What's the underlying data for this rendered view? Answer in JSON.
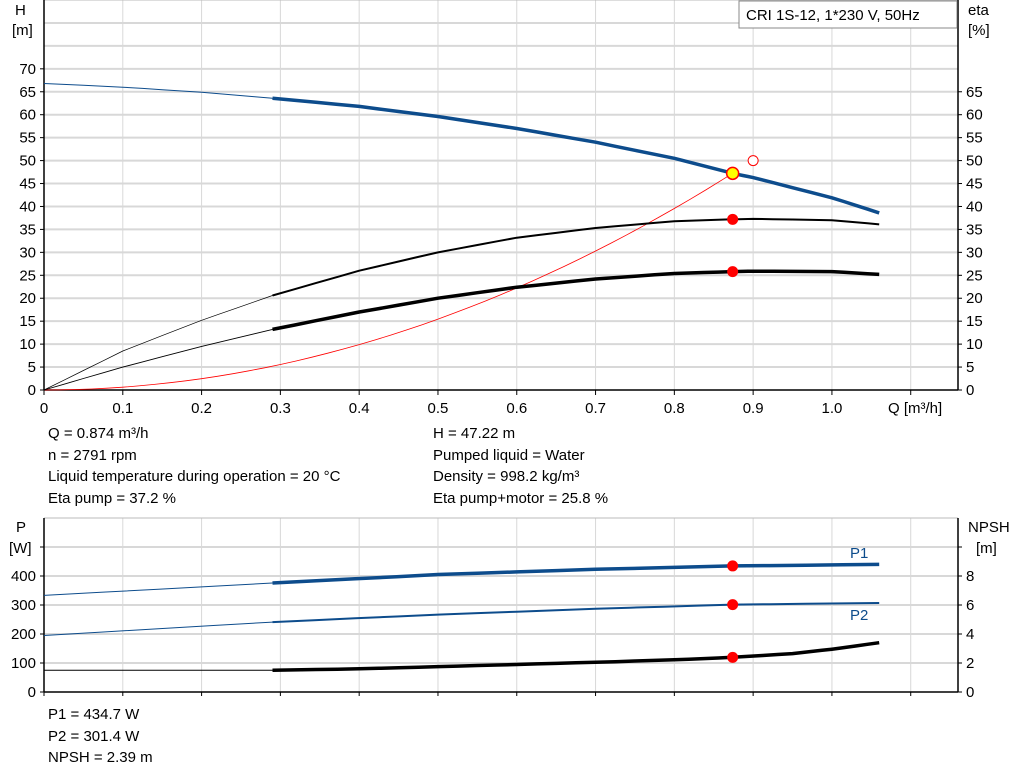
{
  "colors": {
    "h_curve": "#0d4c8c",
    "eta": "#000000",
    "system": "#ff0000",
    "duty_point": "#ff0000",
    "duty_fill": "#ffff00",
    "grid": "#d8d8d8",
    "p_curve": "#0d4c8c"
  },
  "chart_data": [
    {
      "type": "line",
      "legend_box": "CRI 1S-12, 1*230 V, 50Hz",
      "legend_placement": "top-right",
      "xlabel": "Q [m³/h]",
      "ylabel_left": {
        "name": "H",
        "unit": "[m]"
      },
      "ylabel_right": {
        "name": "eta",
        "unit": "[%]"
      },
      "xlim": [
        0,
        1.16
      ],
      "ylim": [
        0,
        85
      ],
      "x_ticks": [
        "0",
        "0.1",
        "0.2",
        "0.3",
        "0.4",
        "0.5",
        "0.6",
        "0.7",
        "0.8",
        "0.9",
        "1.0"
      ],
      "y_ticks_left": [
        0,
        5,
        10,
        15,
        20,
        25,
        30,
        35,
        40,
        45,
        50,
        55,
        60,
        65,
        70
      ],
      "y_ticks_right": [
        0,
        5,
        10,
        15,
        20,
        25,
        30,
        35,
        40,
        45,
        50,
        55,
        60,
        65
      ],
      "grid": true,
      "series": [
        {
          "id": "H",
          "x": [
            0,
            0.1,
            0.2,
            0.29,
            0.4,
            0.5,
            0.6,
            0.7,
            0.8,
            0.874,
            0.9,
            1.0,
            1.06
          ],
          "y": [
            66.8,
            66,
            64.9,
            63.6,
            61.8,
            59.6,
            57,
            54,
            50.5,
            47.22,
            46.3,
            41.9,
            38.6
          ]
        },
        {
          "id": "eta_pump",
          "x": [
            0,
            0.1,
            0.2,
            0.29,
            0.4,
            0.5,
            0.6,
            0.7,
            0.8,
            0.874,
            0.9,
            1.0,
            1.06
          ],
          "y": [
            0,
            8.5,
            15.2,
            20.6,
            26,
            30,
            33.2,
            35.3,
            36.8,
            37.2,
            37.3,
            37,
            36.1
          ]
        },
        {
          "id": "eta_pump_motor",
          "x": [
            0,
            0.1,
            0.2,
            0.29,
            0.4,
            0.5,
            0.6,
            0.7,
            0.8,
            0.874,
            0.9,
            1.0,
            1.06
          ],
          "y": [
            0,
            5,
            9.5,
            13.2,
            17,
            20,
            22.4,
            24.2,
            25.4,
            25.8,
            25.9,
            25.8,
            25.2
          ]
        },
        {
          "id": "system",
          "x": [
            0,
            0.1,
            0.2,
            0.3,
            0.4,
            0.5,
            0.6,
            0.7,
            0.8,
            0.874
          ],
          "y": [
            0,
            0.62,
            2.47,
            5.56,
            9.89,
            15.45,
            22.25,
            30.28,
            39.56,
            47.22
          ]
        }
      ],
      "duty_point": {
        "q": 0.874,
        "h": 47.22,
        "eta_pump": 37.2,
        "eta_pump_motor": 25.8
      },
      "requested_point": {
        "q": 0.9,
        "h": 50
      }
    },
    {
      "type": "line",
      "xlim": [
        0,
        1.16
      ],
      "ylim": [
        0,
        600
      ],
      "ylabel_left": {
        "name": "P",
        "unit": "[W]"
      },
      "ylabel_right": {
        "name": "NPSH",
        "unit": "[m]"
      },
      "y_ticks_left": [
        0,
        100,
        200,
        300,
        400
      ],
      "y_ticks_right": [
        0,
        2,
        4,
        6,
        8
      ],
      "grid": true,
      "series": [
        {
          "id": "P1",
          "name": "P1",
          "x": [
            0,
            0.29,
            0.5,
            0.7,
            0.874,
            1.06
          ],
          "y": [
            333,
            376,
            405,
            423,
            434.7,
            440
          ]
        },
        {
          "id": "P2",
          "name": "P2",
          "x": [
            0,
            0.29,
            0.5,
            0.7,
            0.874,
            1.06
          ],
          "y": [
            195,
            241,
            267,
            287,
            301.4,
            307
          ]
        },
        {
          "id": "NPSH",
          "axis": "right",
          "x": [
            0,
            0.29,
            0.4,
            0.5,
            0.6,
            0.7,
            0.8,
            0.874,
            0.95,
            1.0,
            1.06
          ],
          "y": [
            1.5,
            1.5,
            1.6,
            1.75,
            1.9,
            2.05,
            2.22,
            2.39,
            2.65,
            2.95,
            3.4
          ]
        }
      ],
      "duty_point": {
        "q": 0.874,
        "p1": 434.7,
        "p2": 301.4,
        "npsh": 2.39
      }
    }
  ],
  "info_top": {
    "left": [
      "Q = 0.874 m³/h",
      "n = 2791 rpm",
      "Liquid temperature during operation = 20 °C",
      "Eta pump = 37.2 %"
    ],
    "right": [
      "H = 47.22 m",
      "Pumped liquid = Water",
      "Density = 998.2 kg/m³",
      "Eta pump+motor = 25.8 %"
    ]
  },
  "info_bottom": [
    "P1 = 434.7 W",
    "P2 = 301.4 W",
    "NPSH = 2.39 m"
  ]
}
